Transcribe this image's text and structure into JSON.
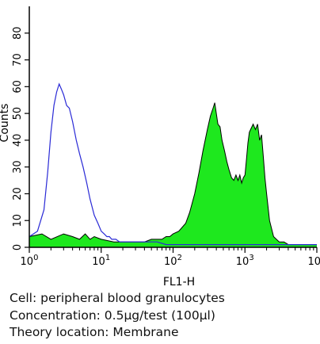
{
  "chart_data": {
    "type": "area",
    "title": "",
    "xlabel": "FL1-H",
    "ylabel": "Counts",
    "x_scale": "log",
    "xlim": [
      1,
      10000
    ],
    "ylim": [
      0,
      90
    ],
    "x_tick_labels": [
      {
        "base": "10",
        "exp": "0"
      },
      {
        "base": "10",
        "exp": "1"
      },
      {
        "base": "10",
        "exp": "2"
      },
      {
        "base": "10",
        "exp": "3"
      },
      {
        "base": "10",
        "exp": "4"
      }
    ],
    "y_ticks": [
      0,
      10,
      20,
      30,
      40,
      50,
      60,
      70,
      80
    ],
    "grid": false,
    "legend": "none",
    "series": [
      {
        "role": "isotype control",
        "style": "outline",
        "color": "#2a2ad6",
        "x": [
          1,
          1.3,
          1.6,
          1.8,
          2.0,
          2.2,
          2.4,
          2.6,
          2.8,
          3.0,
          3.3,
          3.6,
          4.0,
          4.5,
          5.0,
          5.6,
          6.3,
          7.0,
          8.0,
          9.0,
          10,
          11,
          12,
          13,
          14,
          16,
          18,
          20,
          25,
          30,
          40,
          50,
          60,
          80,
          100,
          130,
          160,
          200,
          250,
          300,
          400,
          600,
          1000,
          1500,
          2000,
          3000,
          5000,
          10000
        ],
        "y": [
          4,
          6,
          14,
          28,
          43,
          53,
          58,
          61,
          59,
          57,
          53,
          52,
          47,
          40,
          35,
          30,
          24,
          18,
          12,
          9,
          6,
          5,
          4,
          4,
          3,
          3,
          2,
          2,
          2,
          2,
          2,
          2,
          2,
          1,
          1,
          1,
          1,
          1,
          1,
          1,
          1,
          1,
          1,
          1,
          1,
          1,
          1,
          1
        ]
      },
      {
        "role": "antibody stained",
        "style": "filled",
        "color": "#1ee81e",
        "x": [
          1,
          1.5,
          2,
          3,
          4,
          5,
          6,
          7,
          8,
          10,
          15,
          20,
          30,
          40,
          50,
          60,
          70,
          80,
          90,
          100,
          120,
          150,
          170,
          200,
          230,
          260,
          300,
          330,
          360,
          380,
          400,
          420,
          450,
          480,
          520,
          560,
          600,
          650,
          700,
          750,
          800,
          850,
          900,
          950,
          1000,
          1050,
          1100,
          1150,
          1200,
          1300,
          1400,
          1500,
          1600,
          1700,
          1800,
          1900,
          2000,
          2200,
          2500,
          3000,
          3500,
          4000,
          5000,
          10000
        ],
        "y": [
          4,
          5,
          3,
          5,
          4,
          3,
          5,
          3,
          4,
          3,
          2,
          2,
          2,
          2,
          3,
          3,
          3,
          4,
          4,
          5,
          6,
          9,
          13,
          20,
          28,
          36,
          44,
          49,
          52,
          54,
          50,
          46,
          45,
          40,
          36,
          32,
          29,
          26,
          25,
          27,
          25,
          27,
          24,
          26,
          27,
          33,
          39,
          43,
          44,
          46,
          44,
          46,
          40,
          42,
          34,
          26,
          20,
          10,
          4,
          2,
          2,
          1,
          1,
          1
        ]
      }
    ]
  },
  "caption": {
    "line1": "Cell: peripheral blood granulocytes",
    "line2": "Concentration: 0.5μg/test (100μl)",
    "line3": "Theory location: Membrane"
  }
}
